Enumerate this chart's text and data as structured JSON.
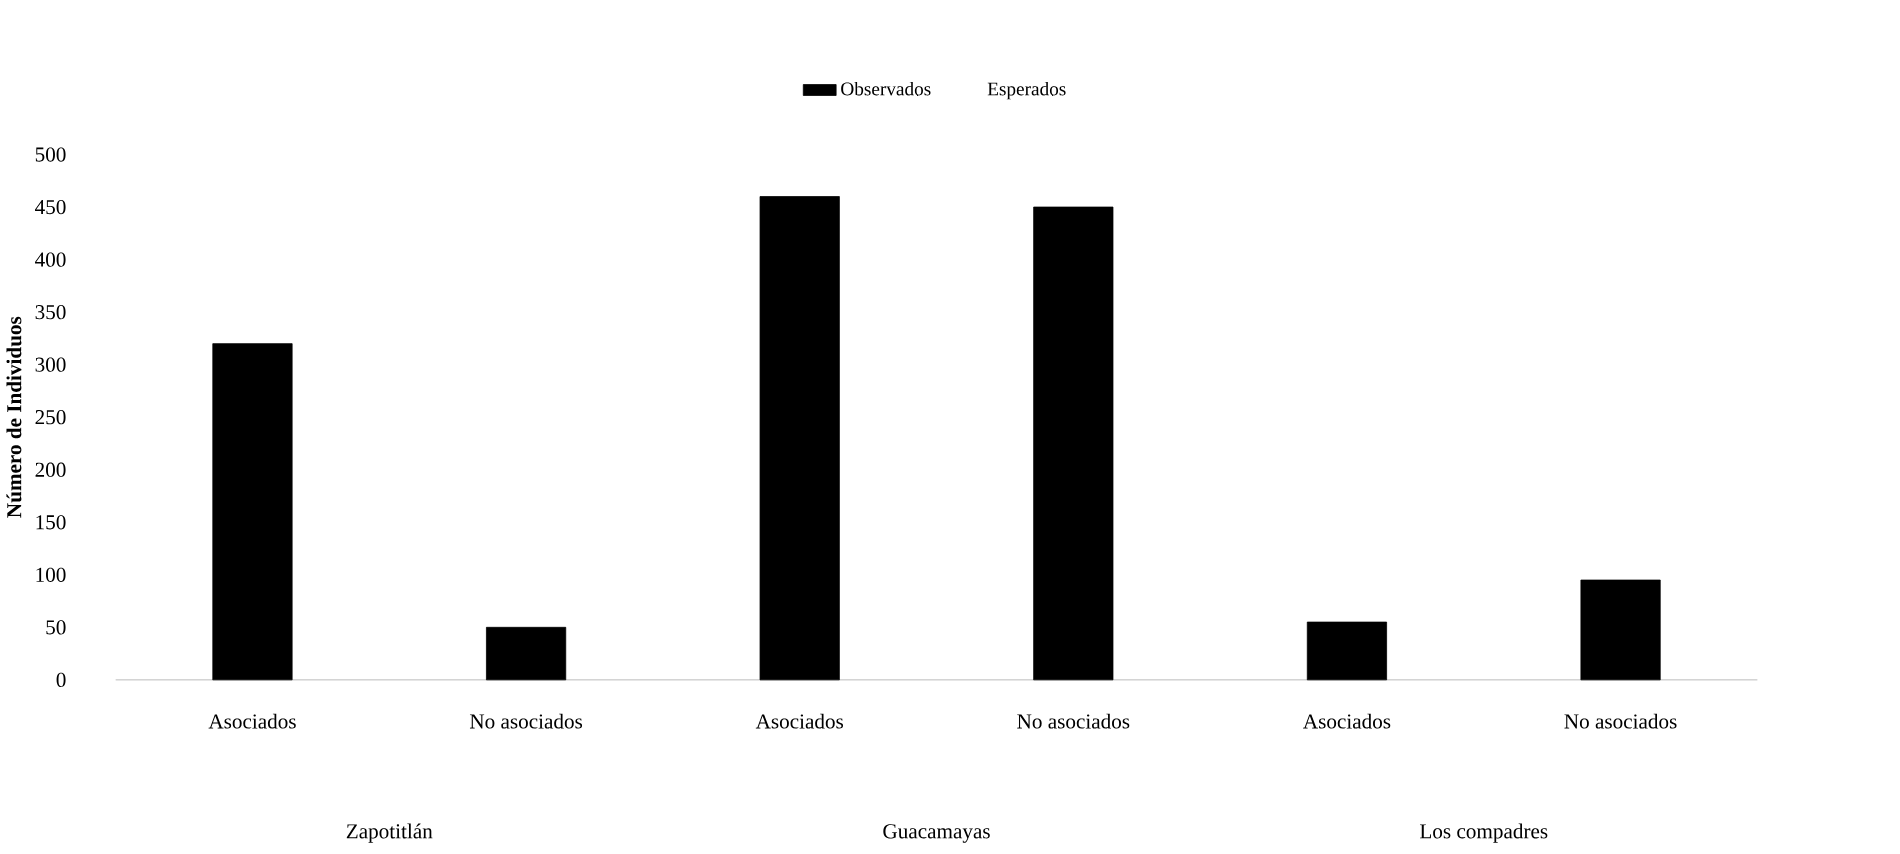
{
  "chart_data": {
    "type": "bar",
    "ylabel": "Número de Individuos",
    "categories": [
      "Asociados",
      "No asociados",
      "Asociados",
      "No asociados",
      "Asociados",
      "No asociados"
    ],
    "series": [
      {
        "name": "Observados",
        "color": "#000000",
        "values": [
          320,
          50,
          460,
          450,
          55,
          95
        ]
      },
      {
        "name": "Esperados",
        "values": [
          null,
          null,
          null,
          null,
          null,
          null
        ]
      }
    ],
    "annotations": [
      "Zapotitlán",
      "Guacamayas",
      "Los compadres"
    ],
    "ylim": [
      0,
      500
    ],
    "yticks": [
      0,
      50,
      100,
      150,
      200,
      250,
      300,
      350,
      400,
      450,
      500
    ],
    "legend": "top",
    "grid": false
  }
}
